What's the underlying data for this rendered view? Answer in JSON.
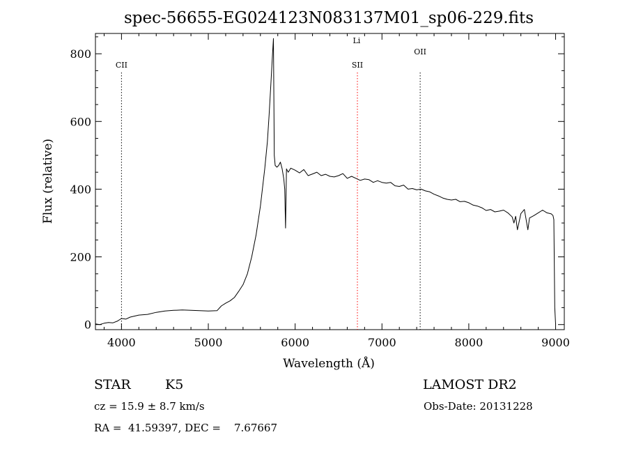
{
  "chart_data": {
    "type": "line",
    "title": "spec-56655-EG024123N083137M01_sp06-229.fits",
    "xlabel": "Wavelength (Å)",
    "ylabel": "Flux (relative)",
    "xlim": [
      3700,
      9100
    ],
    "ylim": [
      -15,
      860
    ],
    "xticks": [
      4000,
      5000,
      6000,
      7000,
      8000,
      9000
    ],
    "yticks": [
      0,
      200,
      400,
      600,
      800
    ],
    "grid": false,
    "series": [
      {
        "x": [
          3700,
          3750,
          3800,
          3850,
          3900,
          3950,
          4000,
          4050,
          4100,
          4200,
          4300,
          4400,
          4500,
          4600,
          4700,
          4800,
          4900,
          5000,
          5100,
          5150,
          5200,
          5250,
          5300,
          5350,
          5400,
          5450,
          5500,
          5550,
          5600,
          5650,
          5680,
          5700,
          5720,
          5740,
          5750,
          5760,
          5770,
          5790,
          5810,
          5830,
          5850,
          5870,
          5880,
          5890,
          5900,
          5920,
          5950,
          6000,
          6050,
          6100,
          6150,
          6200,
          6250,
          6300,
          6350,
          6400,
          6450,
          6500,
          6550,
          6600,
          6650,
          6700,
          6750,
          6800,
          6850,
          6900,
          6950,
          7000,
          7050,
          7100,
          7150,
          7200,
          7250,
          7300,
          7350,
          7400,
          7450,
          7500,
          7550,
          7600,
          7650,
          7700,
          7750,
          7800,
          7850,
          7900,
          7950,
          8000,
          8050,
          8100,
          8150,
          8200,
          8250,
          8300,
          8350,
          8400,
          8450,
          8500,
          8520,
          8540,
          8560,
          8600,
          8640,
          8660,
          8680,
          8700,
          8750,
          8800,
          8850,
          8900,
          8950,
          8970,
          8980,
          8990,
          9000
        ],
        "y": [
          2,
          0,
          4,
          6,
          5,
          10,
          18,
          16,
          22,
          28,
          30,
          36,
          40,
          42,
          43,
          42,
          41,
          40,
          41,
          55,
          63,
          70,
          80,
          98,
          118,
          150,
          200,
          265,
          350,
          460,
          540,
          620,
          710,
          800,
          845,
          500,
          470,
          465,
          470,
          480,
          460,
          430,
          400,
          285,
          460,
          450,
          462,
          456,
          448,
          458,
          440,
          445,
          450,
          440,
          444,
          438,
          436,
          440,
          446,
          432,
          438,
          432,
          426,
          430,
          428,
          420,
          425,
          420,
          418,
          420,
          410,
          408,
          412,
          400,
          402,
          398,
          400,
          395,
          392,
          385,
          380,
          374,
          370,
          368,
          370,
          363,
          364,
          360,
          353,
          350,
          345,
          337,
          340,
          333,
          335,
          338,
          330,
          318,
          300,
          320,
          280,
          328,
          340,
          310,
          280,
          315,
          322,
          330,
          338,
          330,
          327,
          322,
          310,
          50,
          2
        ]
      }
    ],
    "emission_lines": [
      {
        "label": "CII",
        "wavelength": 4000
      },
      {
        "label": "SII",
        "wavelength": 6717
      },
      {
        "label": "Li",
        "wavelength": 6708
      },
      {
        "label": "OII",
        "wavelength": 7440
      }
    ]
  },
  "info": {
    "star_label": "STAR",
    "class_label": "K5",
    "survey": "LAMOST DR2",
    "cz": "cz = 15.9 ± 8.7 km/s",
    "obs_date": "Obs-Date: 20131228",
    "coords": "RA =  41.59397, DEC =    7.67667"
  },
  "colors": {
    "axis": "#000000",
    "spectrum": "#000000",
    "emission_line": "#ff0000",
    "reference_line": "#000000"
  }
}
